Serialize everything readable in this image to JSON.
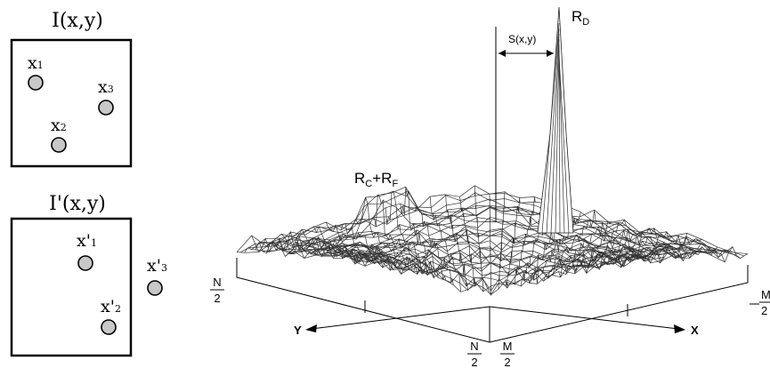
{
  "panel_top": {
    "title": "I(x,y)",
    "points": [
      {
        "label": "x",
        "sub": "1"
      },
      {
        "label": "x",
        "sub": "2"
      },
      {
        "label": "x",
        "sub": "3"
      }
    ]
  },
  "panel_bottom": {
    "title": "I'(x,y)",
    "points": [
      {
        "label": "x'",
        "sub": "1"
      },
      {
        "label": "x'",
        "sub": "2"
      },
      {
        "label": "x'",
        "sub": "3"
      }
    ]
  },
  "surface": {
    "peak_label": "R",
    "peak_sub": "D",
    "noise_label_a": "R",
    "noise_sub_a": "C",
    "noise_plus": "+",
    "noise_label_b": "R",
    "noise_sub_b": "F",
    "shift_label": "S(x,y)",
    "axis_y": "Y",
    "axis_x": "X",
    "frac_left_num": "N",
    "frac_left_den": "2",
    "frac_bottom_n_num": "N",
    "frac_bottom_n_den": "2",
    "frac_bottom_m_num": "M",
    "frac_bottom_m_den": "2",
    "frac_right_num": "M",
    "frac_right_den": "2"
  }
}
